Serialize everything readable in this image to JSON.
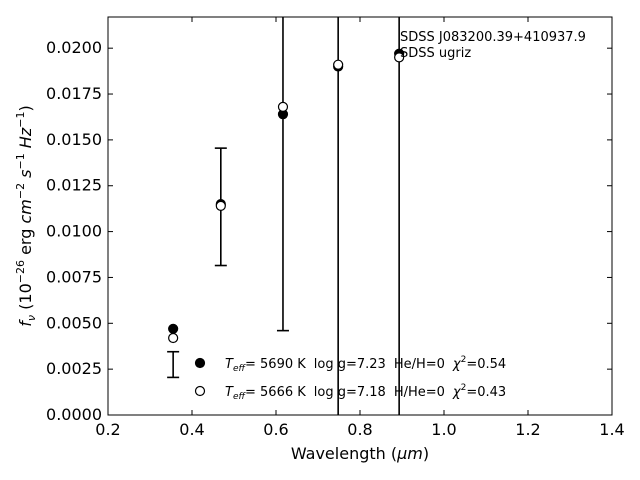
{
  "chart_data": {
    "type": "scatter",
    "xlabel_base": "Wavelength (",
    "xlabel_unit": "μm",
    "xlabel_close": ")",
    "ylabel_f": "f",
    "ylabel_nu": "ν",
    "ylabel_rest_a": " (10",
    "ylabel_exp1": "−26",
    "ylabel_rest_b": " erg ",
    "ylabel_cm": "cm",
    "ylabel_exp2": "−2",
    "ylabel_s": " s",
    "ylabel_exp3": "−1",
    "ylabel_hz": " Hz",
    "ylabel_exp4": "−1",
    "ylabel_close": ")",
    "xlim": [
      0.2,
      1.4
    ],
    "ylim": [
      0.0,
      0.0217
    ],
    "xticks": [
      0.2,
      0.4,
      0.6,
      0.8,
      1.0,
      1.2,
      1.4
    ],
    "xtick_labels": [
      "0.2",
      "0.4",
      "0.6",
      "0.8",
      "1.0",
      "1.2",
      "1.4"
    ],
    "yticks": [
      0.0,
      0.0025,
      0.005,
      0.0075,
      0.01,
      0.0125,
      0.015,
      0.0175,
      0.02
    ],
    "ytick_labels": [
      "0.0000",
      "0.0025",
      "0.0050",
      "0.0075",
      "0.0100",
      "0.0125",
      "0.0150",
      "0.0175",
      "0.0200"
    ],
    "annotation_lines": [
      "SDSS J083200.39+410937.9",
      "SDSS ugriz"
    ],
    "observed": {
      "x": [
        0.3551,
        0.4686,
        0.6166,
        0.748,
        0.8932
      ],
      "y": [
        0.00275,
        0.01135,
        0.0166,
        0.0189,
        0.0195
      ],
      "yerr": [
        0.0007,
        0.0032,
        0.012,
        0.028,
        0.04
      ]
    },
    "series": [
      {
        "marker": "filled",
        "x": [
          0.3551,
          0.4686,
          0.6166,
          0.748,
          0.8932
        ],
        "y": [
          0.0047,
          0.0115,
          0.0164,
          0.019,
          0.0197
        ],
        "legend_teff_label": "T",
        "legend_teff_sub": "eff",
        "legend_teff_value": "=  5690 K",
        "legend_logg": "log g=7.23",
        "legend_comp": "He/H=0",
        "legend_chi_label": "χ",
        "legend_chi_exp": "2",
        "legend_chi_value": "=0.54"
      },
      {
        "marker": "open",
        "x": [
          0.3551,
          0.4686,
          0.6166,
          0.748,
          0.8932
        ],
        "y": [
          0.0042,
          0.0114,
          0.0168,
          0.0191,
          0.0195
        ],
        "legend_teff_label": "T",
        "legend_teff_sub": "eff",
        "legend_teff_value": "=  5666 K",
        "legend_logg": "log g=7.18",
        "legend_comp": "H/He=0",
        "legend_chi_label": "χ",
        "legend_chi_exp": "2",
        "legend_chi_value": "=0.43"
      }
    ],
    "colors": {
      "marker": "#000000",
      "axes": "#000000",
      "background": "#ffffff"
    }
  }
}
